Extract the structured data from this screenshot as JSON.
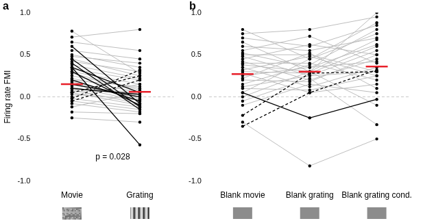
{
  "chart_data": [
    {
      "type": "line",
      "panel": "a",
      "y_label": "Firing rate FMI",
      "grid": false,
      "marker": "circle",
      "categories": [
        "Movie",
        "Grating"
      ],
      "ylim": [
        -1,
        1
      ],
      "yticks": [
        {
          "value": -1,
          "label": "-1.0"
        },
        {
          "value": -0.5,
          "label": "-0.5"
        },
        {
          "value": 0,
          "label": "0.0"
        },
        {
          "value": 0.5,
          "label": "0.5"
        },
        {
          "value": 1,
          "label": "1.0"
        }
      ],
      "reference_line": 0,
      "annotations": [
        {
          "text": "p = 0.028",
          "y": -0.72
        }
      ],
      "means": {
        "color": "#e8202a",
        "values": [
          0.15,
          0.06
        ]
      },
      "series": [
        {
          "color": "#bdbdbd",
          "line_style": "solid",
          "values": [
            0.78,
            0.28
          ]
        },
        {
          "color": "#bdbdbd",
          "line_style": "solid",
          "values": [
            0.71,
            0.8
          ]
        },
        {
          "color": "#bdbdbd",
          "line_style": "solid",
          "values": [
            0.65,
            0.55
          ]
        },
        {
          "color": "#bdbdbd",
          "line_style": "solid",
          "values": [
            0.55,
            0.45
          ]
        },
        {
          "color": "#bdbdbd",
          "line_style": "solid",
          "values": [
            0.5,
            0.35
          ]
        },
        {
          "color": "#bdbdbd",
          "line_style": "solid",
          "values": [
            0.48,
            0.4
          ]
        },
        {
          "color": "#bdbdbd",
          "line_style": "solid",
          "values": [
            0.45,
            0.25
          ]
        },
        {
          "color": "#bdbdbd",
          "line_style": "solid",
          "values": [
            0.42,
            0.3
          ]
        },
        {
          "color": "#bdbdbd",
          "line_style": "solid",
          "values": [
            0.38,
            0.22
          ]
        },
        {
          "color": "#bdbdbd",
          "line_style": "solid",
          "values": [
            0.33,
            0.2
          ]
        },
        {
          "color": "#bdbdbd",
          "line_style": "solid",
          "values": [
            0.3,
            0.15
          ]
        },
        {
          "color": "#bdbdbd",
          "line_style": "solid",
          "values": [
            0.28,
            0.08
          ]
        },
        {
          "color": "#bdbdbd",
          "line_style": "solid",
          "values": [
            0.25,
            0.1
          ]
        },
        {
          "color": "#bdbdbd",
          "line_style": "solid",
          "values": [
            0.22,
            0.05
          ]
        },
        {
          "color": "#bdbdbd",
          "line_style": "solid",
          "values": [
            0.2,
            0.12
          ]
        },
        {
          "color": "#bdbdbd",
          "line_style": "solid",
          "values": [
            0.18,
            -0.02
          ]
        },
        {
          "color": "#bdbdbd",
          "line_style": "solid",
          "values": [
            0.16,
            0.0
          ]
        },
        {
          "color": "#bdbdbd",
          "line_style": "solid",
          "values": [
            0.14,
            0.03
          ]
        },
        {
          "color": "#bdbdbd",
          "line_style": "solid",
          "values": [
            0.12,
            -0.05
          ]
        },
        {
          "color": "#bdbdbd",
          "line_style": "solid",
          "values": [
            0.1,
            0.02
          ]
        },
        {
          "color": "#bdbdbd",
          "line_style": "solid",
          "values": [
            0.08,
            -0.08
          ]
        },
        {
          "color": "#bdbdbd",
          "line_style": "solid",
          "values": [
            0.06,
            0.07
          ]
        },
        {
          "color": "#bdbdbd",
          "line_style": "solid",
          "values": [
            0.05,
            -0.1
          ]
        },
        {
          "color": "#bdbdbd",
          "line_style": "solid",
          "values": [
            0.03,
            -0.03
          ]
        },
        {
          "color": "#bdbdbd",
          "line_style": "solid",
          "values": [
            0.0,
            0.15
          ]
        },
        {
          "color": "#bdbdbd",
          "line_style": "solid",
          "values": [
            -0.02,
            -0.12
          ]
        },
        {
          "color": "#bdbdbd",
          "line_style": "solid",
          "values": [
            -0.05,
            -0.15
          ]
        },
        {
          "color": "#bdbdbd",
          "line_style": "solid",
          "values": [
            -0.08,
            -0.18
          ]
        },
        {
          "color": "#bdbdbd",
          "line_style": "solid",
          "values": [
            -0.12,
            0.05
          ]
        },
        {
          "color": "#bdbdbd",
          "line_style": "solid",
          "values": [
            -0.18,
            -0.2
          ]
        },
        {
          "color": "#bdbdbd",
          "line_style": "solid",
          "values": [
            -0.25,
            -0.3
          ]
        },
        {
          "color": "#000000",
          "line_style": "dashed",
          "values": [
            -0.05,
            0.2
          ]
        },
        {
          "color": "#000000",
          "line_style": "dashed",
          "values": [
            -0.02,
            0.32
          ]
        },
        {
          "color": "#000000",
          "line_style": "dashed",
          "values": [
            0.05,
            0.25
          ]
        },
        {
          "color": "#000000",
          "line_style": "solid",
          "values": [
            0.6,
            -0.08
          ]
        },
        {
          "color": "#000000",
          "line_style": "solid",
          "values": [
            0.45,
            -0.12
          ]
        },
        {
          "color": "#000000",
          "line_style": "solid",
          "values": [
            0.4,
            -0.15
          ]
        },
        {
          "color": "#000000",
          "line_style": "solid",
          "values": [
            0.35,
            -0.57
          ]
        },
        {
          "color": "#000000",
          "line_style": "solid",
          "values": [
            0.3,
            -0.1
          ]
        },
        {
          "color": "#000000",
          "line_style": "solid",
          "values": [
            0.2,
            -0.05
          ]
        },
        {
          "color": "#000000",
          "line_style": "solid",
          "values": [
            0.15,
            0.0
          ]
        },
        {
          "color": "#000000",
          "line_style": "solid",
          "values": [
            0.1,
            0.03
          ]
        },
        {
          "color": "#000000",
          "line_style": "solid",
          "values": [
            0.35,
            0.05
          ]
        }
      ]
    },
    {
      "type": "line",
      "panel": "b",
      "grid": false,
      "marker": "circle",
      "categories": [
        "Blank movie",
        "Blank grating",
        "Blank grating cond."
      ],
      "ylim": [
        -1,
        1
      ],
      "yticks": [
        {
          "value": -1,
          "label": "-1.0"
        },
        {
          "value": -0.5,
          "label": "-0.5"
        },
        {
          "value": 0,
          "label": "0.0"
        },
        {
          "value": 0.5,
          "label": "0.5"
        },
        {
          "value": 1,
          "label": "1.0"
        }
      ],
      "reference_line": 0,
      "means": {
        "color": "#e8202a",
        "values": [
          0.27,
          0.3,
          0.36
        ]
      },
      "series": [
        {
          "color": "#bdbdbd",
          "line_style": "solid",
          "values": [
            0.8,
            0.45,
            0.75
          ]
        },
        {
          "color": "#bdbdbd",
          "line_style": "solid",
          "values": [
            0.75,
            0.8,
            0.95
          ]
        },
        {
          "color": "#bdbdbd",
          "line_style": "solid",
          "values": [
            0.7,
            0.6,
            0.85
          ]
        },
        {
          "color": "#bdbdbd",
          "line_style": "solid",
          "values": [
            0.65,
            0.3,
            1.0
          ]
        },
        {
          "color": "#bdbdbd",
          "line_style": "solid",
          "values": [
            0.6,
            0.55,
            0.7
          ]
        },
        {
          "color": "#bdbdbd",
          "line_style": "solid",
          "values": [
            0.55,
            0.72,
            0.4
          ]
        },
        {
          "color": "#bdbdbd",
          "line_style": "solid",
          "values": [
            0.52,
            0.35,
            0.62
          ]
        },
        {
          "color": "#bdbdbd",
          "line_style": "solid",
          "values": [
            0.5,
            0.5,
            0.3
          ]
        },
        {
          "color": "#bdbdbd",
          "line_style": "solid",
          "values": [
            0.48,
            0.25,
            0.55
          ]
        },
        {
          "color": "#bdbdbd",
          "line_style": "solid",
          "values": [
            0.45,
            0.62,
            0.5
          ]
        },
        {
          "color": "#bdbdbd",
          "line_style": "solid",
          "values": [
            0.42,
            0.2,
            0.45
          ]
        },
        {
          "color": "#bdbdbd",
          "line_style": "solid",
          "values": [
            0.4,
            0.4,
            0.2
          ]
        },
        {
          "color": "#bdbdbd",
          "line_style": "solid",
          "values": [
            0.38,
            0.3,
            0.68
          ]
        },
        {
          "color": "#bdbdbd",
          "line_style": "solid",
          "values": [
            0.35,
            0.12,
            0.35
          ]
        },
        {
          "color": "#bdbdbd",
          "line_style": "solid",
          "values": [
            0.32,
            0.48,
            0.25
          ]
        },
        {
          "color": "#bdbdbd",
          "line_style": "solid",
          "values": [
            0.3,
            0.28,
            0.6
          ]
        },
        {
          "color": "#bdbdbd",
          "line_style": "solid",
          "values": [
            0.28,
            0.05,
            0.15
          ]
        },
        {
          "color": "#bdbdbd",
          "line_style": "solid",
          "values": [
            0.25,
            0.35,
            0.42
          ]
        },
        {
          "color": "#bdbdbd",
          "line_style": "solid",
          "values": [
            0.22,
            0.52,
            0.1
          ]
        },
        {
          "color": "#bdbdbd",
          "line_style": "solid",
          "values": [
            0.2,
            0.18,
            0.5
          ]
        },
        {
          "color": "#bdbdbd",
          "line_style": "solid",
          "values": [
            0.15,
            0.38,
            0.8
          ]
        },
        {
          "color": "#bdbdbd",
          "line_style": "solid",
          "values": [
            0.12,
            0.25,
            0.3
          ]
        },
        {
          "color": "#bdbdbd",
          "line_style": "solid",
          "values": [
            0.1,
            0.08,
            0.25
          ]
        },
        {
          "color": "#bdbdbd",
          "line_style": "solid",
          "values": [
            0.05,
            0.45,
            0.88
          ]
        },
        {
          "color": "#bdbdbd",
          "line_style": "solid",
          "values": [
            0.0,
            0.3,
            -0.1
          ]
        },
        {
          "color": "#bdbdbd",
          "line_style": "solid",
          "values": [
            -0.05,
            0.22,
            -0.33
          ]
        },
        {
          "color": "#bdbdbd",
          "line_style": "solid",
          "values": [
            -0.1,
            0.15,
            0.05
          ]
        },
        {
          "color": "#bdbdbd",
          "line_style": "solid",
          "values": [
            -0.3,
            -0.82,
            -0.5
          ]
        },
        {
          "color": "#000000",
          "line_style": "dashed",
          "values": [
            -0.22,
            0.28,
            0.3
          ]
        },
        {
          "color": "#000000",
          "line_style": "dashed",
          "values": [
            -0.35,
            0.05,
            0.32
          ]
        },
        {
          "color": "#000000",
          "line_style": "solid",
          "values": [
            0.05,
            -0.25,
            -0.03
          ]
        }
      ]
    }
  ]
}
